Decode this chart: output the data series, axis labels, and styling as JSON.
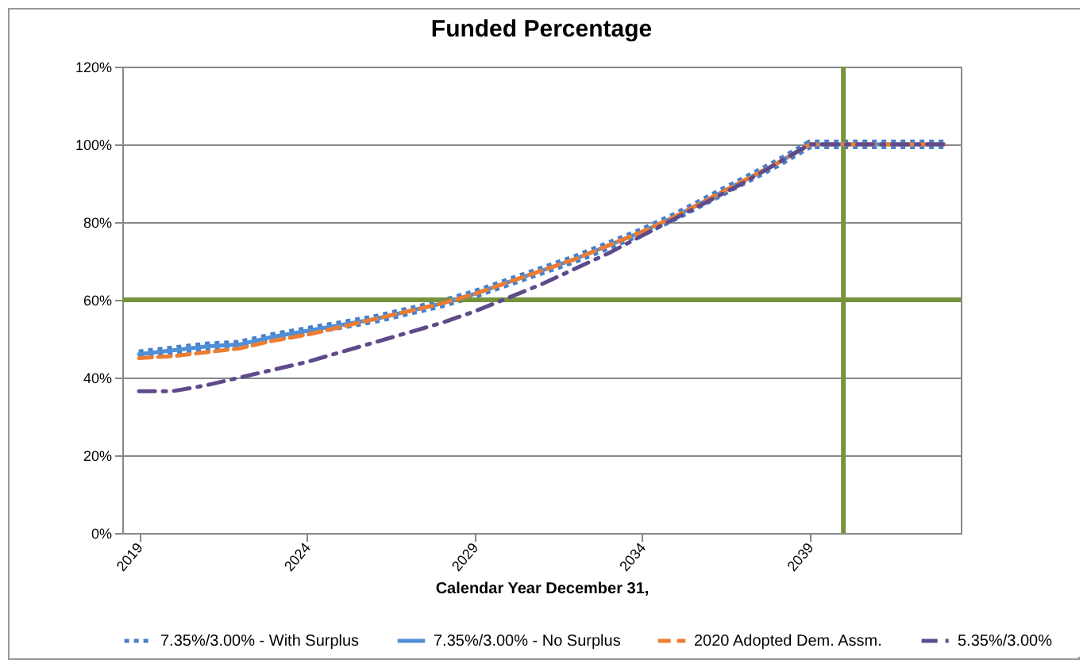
{
  "chart_data": {
    "type": "line",
    "title": "Funded Percentage",
    "xlabel": "Calendar Year December 31,",
    "x": [
      2019,
      2020,
      2021,
      2022,
      2023,
      2024,
      2025,
      2026,
      2027,
      2028,
      2029,
      2030,
      2031,
      2032,
      2033,
      2034,
      2035,
      2036,
      2037,
      2038,
      2039,
      2040,
      2041,
      2042,
      2043
    ],
    "series": [
      {
        "name": "7.35%/3.00% - With Surplus",
        "color": "#4a7fc8",
        "line_style": "dotted",
        "values": [
          46,
          47,
          48,
          48.5,
          50.5,
          52,
          53.5,
          55,
          57,
          59,
          61.5,
          64.5,
          67.5,
          70.5,
          74,
          77.5,
          81.5,
          86,
          90.5,
          95,
          100,
          100,
          100,
          100,
          100
        ]
      },
      {
        "name": "7.35%/3.00% - No Surplus",
        "color": "#4f8fd8",
        "line_style": "solid",
        "values": [
          46,
          47,
          48,
          48.5,
          50.5,
          52,
          53.5,
          55,
          57,
          59,
          61.5,
          64.5,
          67.5,
          70.5,
          74,
          77.5,
          81.5,
          86,
          90.5,
          95,
          100,
          100,
          100,
          100,
          100
        ]
      },
      {
        "name": "2020 Adopted Dem. Assm.",
        "color": "#ed7d31",
        "line_style": "dashed",
        "values": [
          45,
          45.5,
          46.5,
          47.5,
          49.5,
          51,
          53,
          55,
          57,
          59,
          61.5,
          64.5,
          67.5,
          70.5,
          74,
          77.5,
          81.5,
          86,
          90.5,
          95,
          100,
          100,
          100,
          100,
          100
        ]
      },
      {
        "name": "5.35%/3.00%",
        "color": "#5f4b8b",
        "line_style": "dashdot",
        "values": [
          36.5,
          36.5,
          38,
          40,
          42,
          44,
          46.5,
          49,
          51.5,
          54,
          57,
          60.5,
          64,
          68,
          72,
          76.5,
          81,
          85.5,
          90,
          95,
          100,
          100,
          100,
          100,
          100
        ]
      }
    ],
    "xlim": [
      2018.5,
      2043.5
    ],
    "xticks": [
      2019,
      2024,
      2029,
      2034,
      2039
    ],
    "ylim": [
      0,
      120
    ],
    "yticks": [
      {
        "value": 0,
        "label": "0%"
      },
      {
        "value": 20,
        "label": "20%"
      },
      {
        "value": 40,
        "label": "40%"
      },
      {
        "value": 60,
        "label": "60%"
      },
      {
        "value": 80,
        "label": "80%"
      },
      {
        "value": 100,
        "label": "100%"
      },
      {
        "value": 120,
        "label": "120%"
      }
    ],
    "grid": "y",
    "legend": "bottom",
    "ref_lines": [
      {
        "axis": "y",
        "value": 60,
        "color": "#77933c"
      },
      {
        "axis": "x",
        "value": 2040,
        "color": "#77933c"
      }
    ]
  }
}
